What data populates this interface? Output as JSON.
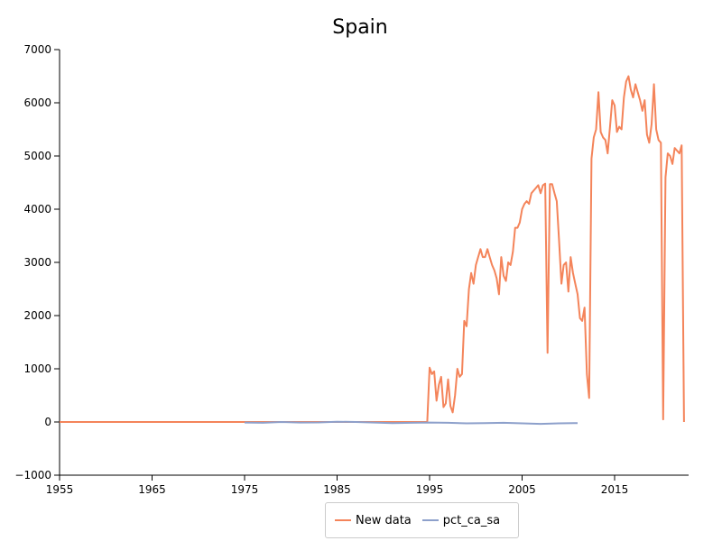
{
  "chart_data": {
    "type": "line",
    "title": "Spain",
    "xlabel": "",
    "ylabel": "",
    "xlim": [
      1955,
      2023
    ],
    "ylim": [
      -1000,
      7000
    ],
    "x_ticks": [
      1955,
      1965,
      1975,
      1985,
      1995,
      2005,
      2015
    ],
    "y_ticks": [
      -1000,
      0,
      1000,
      2000,
      3000,
      4000,
      5000,
      6000,
      7000
    ],
    "grid": false,
    "legend_position": "bottom-center",
    "series": [
      {
        "name": "New data",
        "color": "#f4845a",
        "x": [
          1955,
          1975,
          1994.75,
          1995,
          1995.25,
          1995.5,
          1995.75,
          1996,
          1996.25,
          1996.5,
          1996.75,
          1997,
          1997.25,
          1997.5,
          1997.75,
          1998,
          1998.25,
          1998.5,
          1998.75,
          1999,
          1999.25,
          1999.5,
          1999.75,
          2000,
          2000.25,
          2000.5,
          2000.75,
          2001,
          2001.25,
          2001.5,
          2001.75,
          2002,
          2002.25,
          2002.5,
          2002.75,
          2003,
          2003.25,
          2003.5,
          2003.75,
          2004,
          2004.25,
          2004.5,
          2004.75,
          2005,
          2005.25,
          2005.5,
          2005.75,
          2006,
          2006.25,
          2006.5,
          2006.75,
          2007,
          2007.25,
          2007.5,
          2007.75,
          2008,
          2008.25,
          2008.5,
          2008.75,
          2009,
          2009.25,
          2009.5,
          2009.75,
          2010,
          2010.25,
          2010.5,
          2010.75,
          2011,
          2011.25,
          2011.5,
          2011.75,
          2012,
          2012.25,
          2012.5,
          2012.75,
          2013,
          2013.25,
          2013.5,
          2013.75,
          2014,
          2014.25,
          2014.5,
          2014.75,
          2015,
          2015.25,
          2015.5,
          2015.75,
          2016,
          2016.25,
          2016.5,
          2016.75,
          2017,
          2017.25,
          2017.5,
          2017.75,
          2018,
          2018.25,
          2018.5,
          2018.75,
          2019,
          2019.25,
          2019.5,
          2019.75,
          2020,
          2020.25,
          2020.5,
          2020.75,
          2021,
          2021.25,
          2021.5,
          2021.75,
          2022,
          2022.25,
          2022.5
        ],
        "values": [
          0,
          0,
          0,
          1020,
          900,
          950,
          400,
          700,
          850,
          280,
          350,
          800,
          300,
          180,
          500,
          1000,
          850,
          900,
          1900,
          1800,
          2500,
          2800,
          2600,
          2950,
          3100,
          3250,
          3100,
          3100,
          3250,
          3100,
          2950,
          2850,
          2700,
          2400,
          3100,
          2750,
          2650,
          3000,
          2950,
          3200,
          3650,
          3650,
          3750,
          4000,
          4100,
          4150,
          4100,
          4300,
          4350,
          4400,
          4450,
          4300,
          4450,
          4480,
          1300,
          4470,
          4470,
          4300,
          4150,
          3400,
          2600,
          2950,
          3000,
          2450,
          3100,
          2800,
          2600,
          2400,
          1950,
          1900,
          2150,
          900,
          450,
          4950,
          5350,
          5500,
          6200,
          5450,
          5350,
          5300,
          5050,
          5550,
          6050,
          5950,
          5450,
          5550,
          5500,
          6100,
          6400,
          6500,
          6250,
          6100,
          6350,
          6200,
          6050,
          5850,
          6050,
          5400,
          5250,
          5600,
          6350,
          5500,
          5300,
          5250,
          50,
          4600,
          5050,
          5000,
          4850,
          5150,
          5100,
          5050,
          5200,
          0
        ]
      },
      {
        "name": "pct_ca_sa",
        "color": "#8da0cb",
        "x": [
          1975,
          1977,
          1979,
          1981,
          1983,
          1985,
          1987,
          1989,
          1991,
          1993,
          1995,
          1997,
          1999,
          2001,
          2003,
          2005,
          2007,
          2009,
          2011
        ],
        "values": [
          -10,
          -15,
          0,
          -10,
          -8,
          5,
          0,
          -10,
          -20,
          -15,
          -10,
          -15,
          -25,
          -20,
          -15,
          -25,
          -35,
          -25,
          -20
        ]
      }
    ]
  }
}
